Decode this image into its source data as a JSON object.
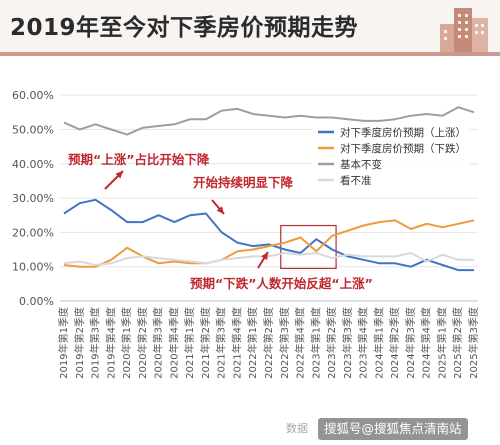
{
  "title": "2019年至今对下季房价预期走势",
  "source": "数据",
  "watermark": "搜狐号@搜狐焦点清南站",
  "chart_data": {
    "type": "line",
    "categories": [
      "2019年第1季度",
      "2019年第2季度",
      "2019年第3季度",
      "2019年第4季度",
      "2020年第1季度",
      "2020年第2季度",
      "2020年第3季度",
      "2020年第4季度",
      "2021年第1季度",
      "2021年第2季度",
      "2021年第3季度",
      "2021年第4季度",
      "2022年第1季度",
      "2022年第2季度",
      "2022年第3季度",
      "2022年第4季度",
      "2023年第1季度",
      "2023年第2季度",
      "2023年第3季度",
      "2023年第4季度",
      "2024年第1季度",
      "2024年第2季度",
      "2024年第3季度",
      "2024年第4季度",
      "2025年第1季度",
      "2025年第2季度",
      "2025年第3季度"
    ],
    "ylim": [
      0,
      65
    ],
    "yticks": [
      "0.00%",
      "10.00%",
      "20.00%",
      "30.00%",
      "40.00%",
      "50.00%",
      "60.00%"
    ],
    "series": [
      {
        "name": "对下季度房价预期（上涨）",
        "color": "#4472c4",
        "values": [
          25.5,
          28.5,
          29.5,
          26.5,
          23,
          23,
          25,
          23,
          25,
          25.5,
          20,
          17,
          16,
          16.5,
          15,
          14,
          18,
          15,
          13,
          12,
          11,
          11,
          10,
          12,
          10.5,
          9,
          9
        ]
      },
      {
        "name": "对下季度房价预期（下跌）",
        "color": "#ed9b3b",
        "values": [
          10.5,
          10,
          10,
          12,
          15.5,
          13,
          11,
          11.5,
          11,
          11,
          12,
          14.5,
          15,
          16,
          17,
          18.5,
          14.5,
          19,
          20.5,
          22,
          23,
          23.5,
          21,
          22.5,
          21.5,
          22.5,
          23.5
        ]
      },
      {
        "name": "基本不变",
        "color": "#9e9e9e",
        "values": [
          52,
          50,
          51.5,
          50,
          48.5,
          50.5,
          51,
          51.5,
          53,
          53,
          55.5,
          56,
          54.5,
          54,
          53.5,
          54,
          53.5,
          53.5,
          53,
          52.5,
          52.5,
          53,
          54,
          54.5,
          54,
          56.5,
          55
        ]
      },
      {
        "name": "看不准",
        "color": "#d9d9d9",
        "values": [
          11,
          11.5,
          10.5,
          11,
          12.5,
          13,
          12.5,
          12,
          11.5,
          11,
          12,
          12.5,
          13,
          13,
          14,
          13.5,
          14,
          12.5,
          13.5,
          13,
          13,
          13,
          14,
          11.5,
          13.5,
          12,
          12
        ]
      }
    ],
    "annotations": [
      {
        "text": "预期“上涨”占比开始下降",
        "color": "#c0282d"
      },
      {
        "text": "开始持续明显下降",
        "color": "#c0282d"
      },
      {
        "text": "预期“下跌”人数开始反超“上涨”",
        "color": "#c0282d"
      }
    ],
    "highlight_box": {
      "from": "2022年第3季度",
      "to": "2023年第2季度",
      "color": "#b0302e"
    },
    "legend": "right-middle"
  }
}
